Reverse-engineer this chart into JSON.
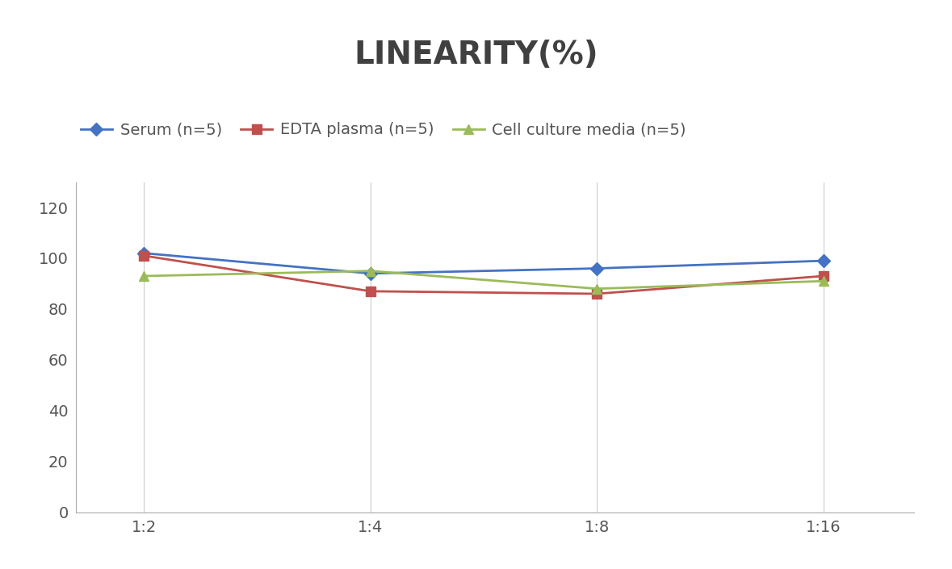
{
  "title": "LINEARITY(%)",
  "x_labels": [
    "1:2",
    "1:4",
    "1:8",
    "1:16"
  ],
  "x_positions": [
    0,
    1,
    2,
    3
  ],
  "series": [
    {
      "name": "Serum (n=5)",
      "values": [
        102,
        94,
        96,
        99
      ],
      "color": "#4472C4",
      "marker": "D",
      "markersize": 8,
      "linewidth": 2.0
    },
    {
      "name": "EDTA plasma (n=5)",
      "values": [
        101,
        87,
        86,
        93
      ],
      "color": "#C0504D",
      "marker": "s",
      "markersize": 8,
      "linewidth": 2.0
    },
    {
      "name": "Cell culture media (n=5)",
      "values": [
        93,
        95,
        88,
        91
      ],
      "color": "#9BBB59",
      "marker": "^",
      "markersize": 9,
      "linewidth": 2.0
    }
  ],
  "ylim": [
    0,
    130
  ],
  "yticks": [
    0,
    20,
    40,
    60,
    80,
    100,
    120
  ],
  "background_color": "#ffffff",
  "title_fontsize": 28,
  "legend_fontsize": 14,
  "tick_fontsize": 14,
  "title_color": "#404040"
}
